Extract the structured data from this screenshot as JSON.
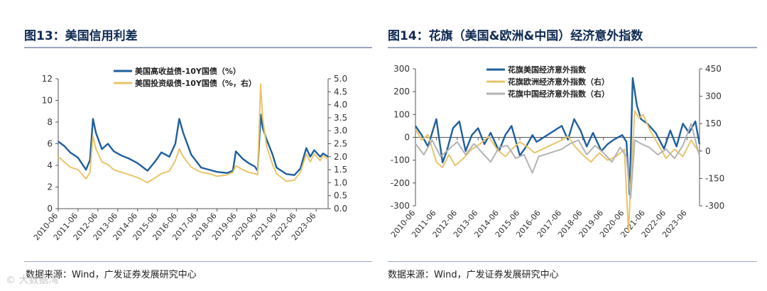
{
  "colors": {
    "blue": "#1f5f9e",
    "gold": "#e8c56a",
    "gray": "#b3b3b3",
    "title": "#0f2a52",
    "axis": "#555555"
  },
  "fig13": {
    "title": "图13：美国信用利差",
    "source": "数据来源：Wind，广发证券发展研究中心",
    "watermark": "© 大数据湾",
    "chart_data": {
      "type": "line",
      "x_tick_labels": [
        "2010-06",
        "2011-06",
        "2012-06",
        "2013-06",
        "2014-06",
        "2015-06",
        "2016-06",
        "2017-06",
        "2018-06",
        "2019-06",
        "2020-06",
        "2021-06",
        "2022-06",
        "2023-06"
      ],
      "x_start": 2010.0,
      "x_end": 2023.6,
      "y_left": {
        "min": 0,
        "max": 12,
        "ticks": [
          0,
          2,
          4,
          6,
          8,
          10,
          12
        ]
      },
      "y_right": {
        "min": 0.0,
        "max": 5.0,
        "ticks": [
          "0.0",
          "0.5",
          "1.0",
          "1.5",
          "2.0",
          "2.5",
          "3.0",
          "3.5",
          "4.0",
          "4.5",
          "5.0"
        ]
      },
      "series": [
        {
          "name": "美国高收益债-10Y国债（%）",
          "axis": "left",
          "color": "#1f5f9e",
          "x": [
            2010.0,
            2010.3,
            2010.6,
            2011.0,
            2011.4,
            2011.6,
            2011.75,
            2011.9,
            2012.2,
            2012.5,
            2012.8,
            2013.2,
            2013.6,
            2014.0,
            2014.5,
            2014.9,
            2015.2,
            2015.6,
            2015.9,
            2016.1,
            2016.3,
            2016.7,
            2017.2,
            2017.6,
            2018.0,
            2018.5,
            2018.8,
            2018.95,
            2019.3,
            2019.6,
            2019.9,
            2020.05,
            2020.2,
            2020.3,
            2020.5,
            2020.8,
            2021.0,
            2021.5,
            2021.9,
            2022.2,
            2022.5,
            2022.7,
            2022.9,
            2023.2,
            2023.35,
            2023.6
          ],
          "values": [
            6.2,
            5.8,
            5.2,
            4.7,
            3.6,
            4.5,
            8.3,
            7.0,
            5.5,
            6.0,
            5.3,
            4.9,
            4.6,
            4.2,
            3.5,
            4.4,
            5.2,
            4.8,
            6.0,
            8.3,
            7.0,
            5.0,
            3.8,
            3.6,
            3.4,
            3.3,
            3.5,
            5.3,
            4.6,
            4.2,
            3.9,
            3.5,
            8.7,
            7.5,
            6.4,
            5.0,
            3.8,
            3.2,
            3.1,
            3.7,
            5.6,
            4.8,
            5.4,
            4.8,
            5.1,
            4.8
          ]
        },
        {
          "name": "美国投资级债-10Y国债（%，右）",
          "axis": "right",
          "color": "#e8c56a",
          "x": [
            2010.0,
            2010.3,
            2010.6,
            2011.0,
            2011.4,
            2011.6,
            2011.75,
            2011.9,
            2012.2,
            2012.5,
            2012.8,
            2013.2,
            2013.6,
            2014.0,
            2014.5,
            2014.9,
            2015.2,
            2015.6,
            2015.9,
            2016.1,
            2016.3,
            2016.7,
            2017.2,
            2017.6,
            2018.0,
            2018.5,
            2018.8,
            2018.95,
            2019.3,
            2019.6,
            2019.9,
            2020.05,
            2020.2,
            2020.3,
            2020.5,
            2020.8,
            2021.0,
            2021.5,
            2021.9,
            2022.2,
            2022.5,
            2022.7,
            2022.9,
            2023.2,
            2023.35,
            2023.6
          ],
          "values": [
            2.0,
            1.8,
            1.6,
            1.5,
            1.15,
            1.4,
            2.8,
            2.3,
            1.8,
            1.7,
            1.5,
            1.4,
            1.3,
            1.2,
            1.0,
            1.2,
            1.35,
            1.45,
            1.85,
            2.3,
            2.0,
            1.6,
            1.4,
            1.35,
            1.25,
            1.3,
            1.4,
            1.65,
            1.5,
            1.4,
            1.35,
            1.3,
            4.8,
            3.5,
            2.4,
            1.7,
            1.35,
            1.05,
            1.1,
            1.4,
            2.1,
            1.8,
            2.1,
            1.85,
            2.05,
            1.9
          ]
        }
      ]
    }
  },
  "fig14": {
    "title": "图14：花旗（美国&欧洲&中国）经济意外指数",
    "source": "数据来源：Wind，广发证券发展研究中心",
    "chart_data": {
      "type": "line",
      "x_tick_labels": [
        "2010-06",
        "2011-06",
        "2012-06",
        "2013-06",
        "2014-06",
        "2015-06",
        "2016-06",
        "2017-06",
        "2018-06",
        "2019-06",
        "2020-06",
        "2021-06",
        "2022-06",
        "2023-06"
      ],
      "x_start": 2010.0,
      "x_end": 2023.6,
      "y_left": {
        "min": -300,
        "max": 300,
        "ticks": [
          -300,
          -200,
          -100,
          0,
          100,
          200,
          300
        ],
        "tick_labels": [
          "-300",
          "-200",
          "-100",
          "0",
          "100",
          "200",
          "300"
        ]
      },
      "y_right": {
        "min": -300,
        "max": 450,
        "ticks": [
          -300,
          -150,
          0,
          150,
          300,
          450
        ],
        "tick_labels": [
          "-300",
          "-150",
          "0",
          "150",
          "300",
          "450"
        ]
      },
      "series": [
        {
          "name": "花旗美国经济意外指数",
          "axis": "left",
          "color": "#1f5f9e",
          "x": [
            2010.0,
            2010.3,
            2010.6,
            2011.0,
            2011.3,
            2011.5,
            2011.8,
            2012.1,
            2012.4,
            2012.7,
            2013.0,
            2013.3,
            2013.6,
            2014.0,
            2014.3,
            2014.6,
            2015.0,
            2015.3,
            2015.6,
            2015.8,
            2017.0,
            2017.3,
            2017.6,
            2017.9,
            2018.2,
            2018.5,
            2018.9,
            2019.2,
            2019.5,
            2019.9,
            2020.1,
            2020.25,
            2020.4,
            2020.6,
            2020.8,
            2021.1,
            2021.5,
            2021.9,
            2022.2,
            2022.5,
            2022.8,
            2023.1,
            2023.4,
            2023.6
          ],
          "values": [
            50,
            10,
            -40,
            80,
            -110,
            -60,
            40,
            70,
            -60,
            10,
            40,
            -30,
            20,
            -60,
            10,
            50,
            -80,
            -40,
            10,
            -20,
            50,
            -10,
            80,
            30,
            -40,
            20,
            -60,
            -30,
            -10,
            10,
            -20,
            -250,
            260,
            140,
            80,
            60,
            20,
            -50,
            30,
            -40,
            60,
            20,
            70,
            -30
          ]
        },
        {
          "name": "花旗欧洲经济意外指数（右）",
          "axis": "right",
          "color": "#e8c56a",
          "x": [
            2010.0,
            2010.3,
            2010.6,
            2011.0,
            2011.3,
            2011.6,
            2011.9,
            2012.3,
            2012.7,
            2013.1,
            2013.5,
            2013.9,
            2014.3,
            2014.7,
            2015.0,
            2015.4,
            2015.7,
            2017.0,
            2017.3,
            2017.6,
            2018.0,
            2018.4,
            2018.8,
            2019.2,
            2019.6,
            2020.0,
            2020.2,
            2020.35,
            2020.5,
            2020.7,
            2020.9,
            2021.2,
            2021.6,
            2022.0,
            2022.4,
            2022.8,
            2023.2,
            2023.6
          ],
          "values": [
            120,
            60,
            90,
            -60,
            -90,
            -20,
            -80,
            -40,
            10,
            40,
            80,
            10,
            -30,
            20,
            50,
            20,
            -10,
            60,
            80,
            30,
            -20,
            -60,
            -10,
            -50,
            -30,
            10,
            -440,
            -80,
            220,
            180,
            200,
            120,
            40,
            -40,
            10,
            -30,
            60,
            -10
          ]
        },
        {
          "name": "花旗中国经济意外指数（右）",
          "axis": "right",
          "color": "#b3b3b3",
          "x": [
            2010.0,
            2010.4,
            2010.8,
            2011.2,
            2011.6,
            2012.0,
            2012.4,
            2012.8,
            2013.2,
            2013.6,
            2014.0,
            2014.4,
            2014.8,
            2015.2,
            2015.6,
            2015.9,
            2017.0,
            2017.4,
            2017.8,
            2018.2,
            2018.6,
            2019.0,
            2019.4,
            2019.8,
            2020.1,
            2020.3,
            2020.5,
            2020.8,
            2021.2,
            2021.6,
            2022.0,
            2022.4,
            2022.8,
            2023.2,
            2023.6
          ],
          "values": [
            40,
            -20,
            60,
            -30,
            10,
            50,
            -20,
            40,
            -10,
            -60,
            20,
            30,
            -40,
            -20,
            -120,
            -30,
            10,
            40,
            60,
            -20,
            30,
            -10,
            -60,
            20,
            -30,
            -260,
            60,
            40,
            20,
            -20,
            10,
            -40,
            30,
            150,
            -30
          ]
        }
      ]
    }
  }
}
